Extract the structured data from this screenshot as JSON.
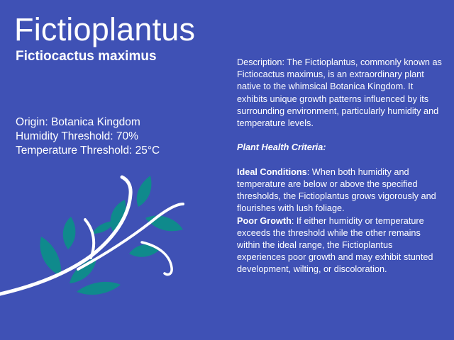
{
  "slide": {
    "title": "Fictioplantus",
    "subtitle": "Fictiocactus maximus",
    "facts": [
      "Origin: Botanica Kingdom",
      "Humidity Threshold: 70%",
      "Temperature Threshold: 25°C"
    ],
    "description": "Description: The Fictioplantus, commonly known as Fictiocactus maximus, is an extraordinary plant native to the whimsical Botanica Kingdom. It exhibits unique growth patterns influenced by its surrounding environment, particularly humidity and temperature levels.",
    "health_heading": "Plant Health Criteria:",
    "ideal": {
      "label": "Ideal Conditions",
      "text": ": When both humidity and temperature are below or above the specified thresholds, the Fictioplantus grows vigorously and flourishes with lush foliage."
    },
    "poor": {
      "label": "Poor Growth",
      "text": ": If either humidity or temperature exceeds the threshold while the other remains within the ideal range, the Fictioplantus experiences poor growth and may exhibit stunted development, wilting, or discoloration."
    }
  },
  "colors": {
    "background": "#3f51b5",
    "text": "#ffffff",
    "leaf": "#0f8a8c",
    "vine": "#ffffff"
  },
  "illustration": {
    "icon": "leafy-vine-icon"
  }
}
